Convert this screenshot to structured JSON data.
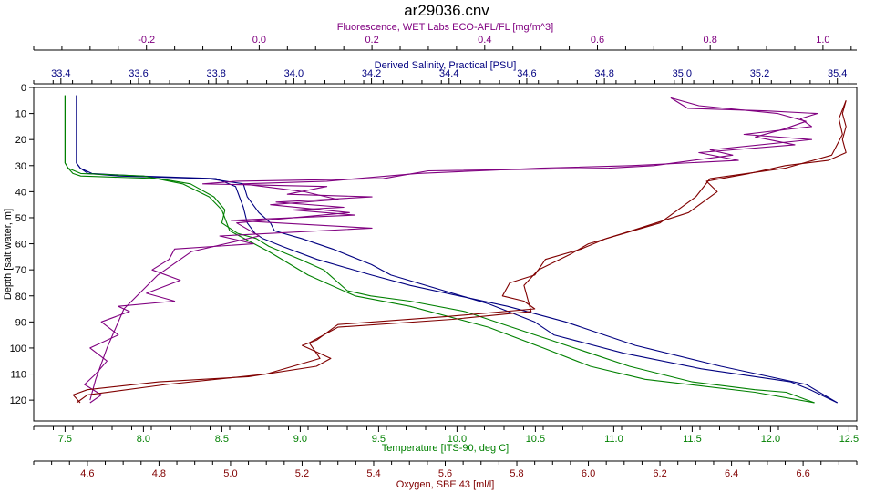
{
  "chart_data": {
    "type": "line",
    "title": "ar29036.cnv",
    "y_axis": {
      "label": "Depth [salt water, m]",
      "range": [
        0,
        128
      ],
      "ticks": [
        0,
        10,
        20,
        30,
        40,
        50,
        60,
        70,
        80,
        90,
        100,
        110,
        120
      ],
      "inverted": true,
      "color": "#000000"
    },
    "x_axes": [
      {
        "id": "fluorescence",
        "label": "Fluorescence, WET Labs ECO-AFL/FL [mg/m^3]",
        "position": "top",
        "range": [
          -0.4,
          1.06
        ],
        "ticks": [
          -0.2,
          0.0,
          0.2,
          0.4,
          0.6,
          0.8,
          1.0
        ],
        "tick_labels": [
          "-0.2",
          "0.0",
          "0.2",
          "0.4",
          "0.6",
          "0.8",
          "1.0"
        ],
        "color": "#800080"
      },
      {
        "id": "salinity",
        "label": "Derived Salinity, Practical [PSU]",
        "position": "top",
        "range": [
          33.33,
          35.45
        ],
        "ticks": [
          33.4,
          33.6,
          33.8,
          34.0,
          34.2,
          34.4,
          34.6,
          34.8,
          35.0,
          35.2,
          35.4
        ],
        "tick_labels": [
          "33.4",
          "33.6",
          "33.8",
          "34.0",
          "34.2",
          "34.4",
          "34.6",
          "34.8",
          "35.0",
          "35.2",
          "35.4"
        ],
        "color": "#000080"
      },
      {
        "id": "temperature",
        "label": "Temperature [ITS-90, deg C]",
        "position": "bottom",
        "range": [
          7.3,
          12.55
        ],
        "ticks": [
          7.5,
          8.0,
          8.5,
          9.0,
          9.5,
          10.0,
          10.5,
          11.0,
          11.5,
          12.0,
          12.5
        ],
        "tick_labels": [
          "7.5",
          "8.0",
          "8.5",
          "9.0",
          "9.5",
          "10.0",
          "10.5",
          "11.0",
          "11.5",
          "12.0",
          "12.5"
        ],
        "color": "#008000"
      },
      {
        "id": "oxygen",
        "label": "Oxygen, SBE 43 [ml/l]",
        "position": "bottom",
        "range": [
          4.45,
          6.75
        ],
        "ticks": [
          4.6,
          4.8,
          5.0,
          5.2,
          5.4,
          5.6,
          5.8,
          6.0,
          6.2,
          6.4,
          6.6
        ],
        "tick_labels": [
          "4.6",
          "4.8",
          "5.0",
          "5.2",
          "5.4",
          "5.6",
          "5.8",
          "6.0",
          "6.2",
          "6.4",
          "6.6"
        ],
        "color": "#800000"
      }
    ],
    "grid": false,
    "legend": "none",
    "series": [
      {
        "axis": "salinity",
        "color": "#000080",
        "casts": [
          {
            "x": [
              33.44,
              33.44,
              33.45,
              33.47,
              33.55,
              33.78,
              33.87,
              33.88,
              33.91,
              33.94,
              33.95,
              34.02,
              34.1,
              34.2,
              34.25,
              34.5,
              34.62,
              34.67,
              34.85,
              35.05,
              35.28,
              35.33,
              35.4
            ],
            "y": [
              3,
              29,
              31,
              33,
              34,
              35,
              37,
              42,
              48,
              52,
              55,
              58,
              62,
              68,
              72,
              83,
              90,
              95,
              102,
              108,
              113,
              116,
              121
            ]
          },
          {
            "x": [
              33.44,
              33.44,
              33.45,
              33.48,
              33.6,
              33.8,
              33.85,
              33.87,
              33.88,
              33.9,
              33.92,
              33.97,
              34.06,
              34.2,
              34.3,
              34.55,
              34.7,
              34.88,
              35.1,
              35.32,
              35.4
            ],
            "y": [
              3,
              29,
              31,
              33,
              34,
              35,
              38,
              46,
              52,
              56,
              58,
              61,
              66,
              72,
              76,
              84,
              90,
              99,
              107,
              114,
              121
            ]
          }
        ]
      },
      {
        "axis": "temperature",
        "color": "#008000",
        "casts": [
          {
            "x": [
              7.5,
              7.5,
              7.52,
              7.55,
              7.6,
              8.1,
              8.3,
              8.45,
              8.52,
              8.5,
              8.6,
              8.72,
              8.8,
              9.0,
              9.15,
              9.3,
              9.45,
              9.7,
              10.05,
              10.35,
              10.6,
              10.85,
              11.1,
              11.5,
              11.9,
              12.1,
              12.28
            ],
            "y": [
              3,
              29,
              31,
              33,
              34,
              35,
              37,
              42,
              47,
              52,
              56,
              58,
              61,
              66,
              70,
              78,
              80,
              82,
              86,
              92,
              97,
              102,
              107,
              113,
              116,
              117,
              121
            ]
          },
          {
            "x": [
              7.5,
              7.5,
              7.52,
              7.6,
              8.0,
              8.25,
              8.42,
              8.5,
              8.55,
              8.8,
              9.05,
              9.35,
              9.7,
              10.2,
              10.55,
              10.85,
              11.2,
              11.9,
              12.28
            ],
            "y": [
              3,
              29,
              31,
              33,
              34,
              37,
              42,
              47,
              55,
              63,
              72,
              80,
              84,
              92,
              100,
              107,
              112,
              117,
              121
            ]
          }
        ]
      },
      {
        "axis": "fluorescence",
        "color": "#800080",
        "casts": [
          {
            "x": [
              0.73,
              0.76,
              0.9,
              0.99,
              0.96,
              0.98,
              0.86,
              0.98,
              0.8,
              0.84,
              0.7,
              0.62,
              0.3,
              0.22,
              -0.04,
              -0.1,
              0.12,
              0.05,
              0.2,
              0.03,
              0.15,
              0.06,
              0.17,
              -0.05,
              0.2,
              -0.07,
              -0.01,
              -0.15,
              -0.16,
              -0.19,
              -0.14,
              -0.2,
              -0.15,
              -0.25,
              -0.23,
              -0.28,
              -0.25,
              -0.3,
              -0.27,
              -0.29,
              -0.31,
              -0.28,
              -0.3
            ],
            "y": [
              4,
              8,
              9,
              10,
              12,
              15,
              18,
              20,
              24,
              26,
              30,
              31,
              32,
              35,
              36,
              37,
              38,
              41,
              42,
              44,
              46,
              47,
              49,
              51,
              54,
              57,
              60,
              62,
              66,
              70,
              74,
              79,
              82,
              84,
              86,
              90,
              95,
              100,
              105,
              110,
              114,
              118,
              121
            ]
          },
          {
            "x": [
              0.73,
              0.78,
              0.92,
              0.97,
              0.93,
              0.88,
              0.95,
              0.78,
              0.85,
              0.66,
              0.5,
              0.28,
              0.12,
              -0.03,
              0.08,
              0.14,
              0.02,
              0.16,
              -0.04,
              0.0,
              -0.12,
              -0.18,
              -0.24,
              -0.27,
              -0.29,
              -0.3
            ],
            "y": [
              4,
              7,
              10,
              13,
              16,
              19,
              22,
              25,
              28,
              30,
              31,
              33,
              36,
              37,
              40,
              43,
              45,
              48,
              52,
              57,
              63,
              72,
              85,
              100,
              112,
              120
            ]
          }
        ]
      },
      {
        "axis": "oxygen",
        "color": "#800000",
        "casts": [
          {
            "x": [
              6.72,
              6.71,
              6.72,
              6.71,
              6.72,
              6.67,
              6.55,
              6.45,
              6.33,
              6.36,
              6.28,
              6.12,
              6.05,
              5.98,
              5.88,
              5.86,
              5.85,
              5.78,
              5.76,
              5.82,
              5.85,
              5.6,
              5.3,
              5.24,
              5.2,
              5.28,
              5.24,
              5.05,
              4.8,
              4.6,
              4.56,
              4.58
            ],
            "y": [
              5,
              10,
              15,
              20,
              25,
              28,
              30,
              33,
              36,
              40,
              48,
              55,
              58,
              62,
              66,
              70,
              72,
              75,
              80,
              82,
              85,
              88,
              91,
              97,
              99,
              104,
              107,
              111,
              113,
              116,
              118,
              121
            ]
          },
          {
            "x": [
              6.72,
              6.7,
              6.71,
              6.68,
              6.55,
              6.34,
              6.3,
              6.2,
              6.0,
              5.95,
              5.86,
              5.82,
              5.84,
              5.62,
              5.3,
              5.22,
              5.25,
              5.1,
              4.82,
              4.6,
              4.57
            ],
            "y": [
              5,
              12,
              18,
              26,
              31,
              35,
              42,
              52,
              60,
              64,
              70,
              76,
              86,
              89,
              92,
              98,
              104,
              110,
              114,
              118,
              121
            ]
          }
        ]
      }
    ]
  }
}
